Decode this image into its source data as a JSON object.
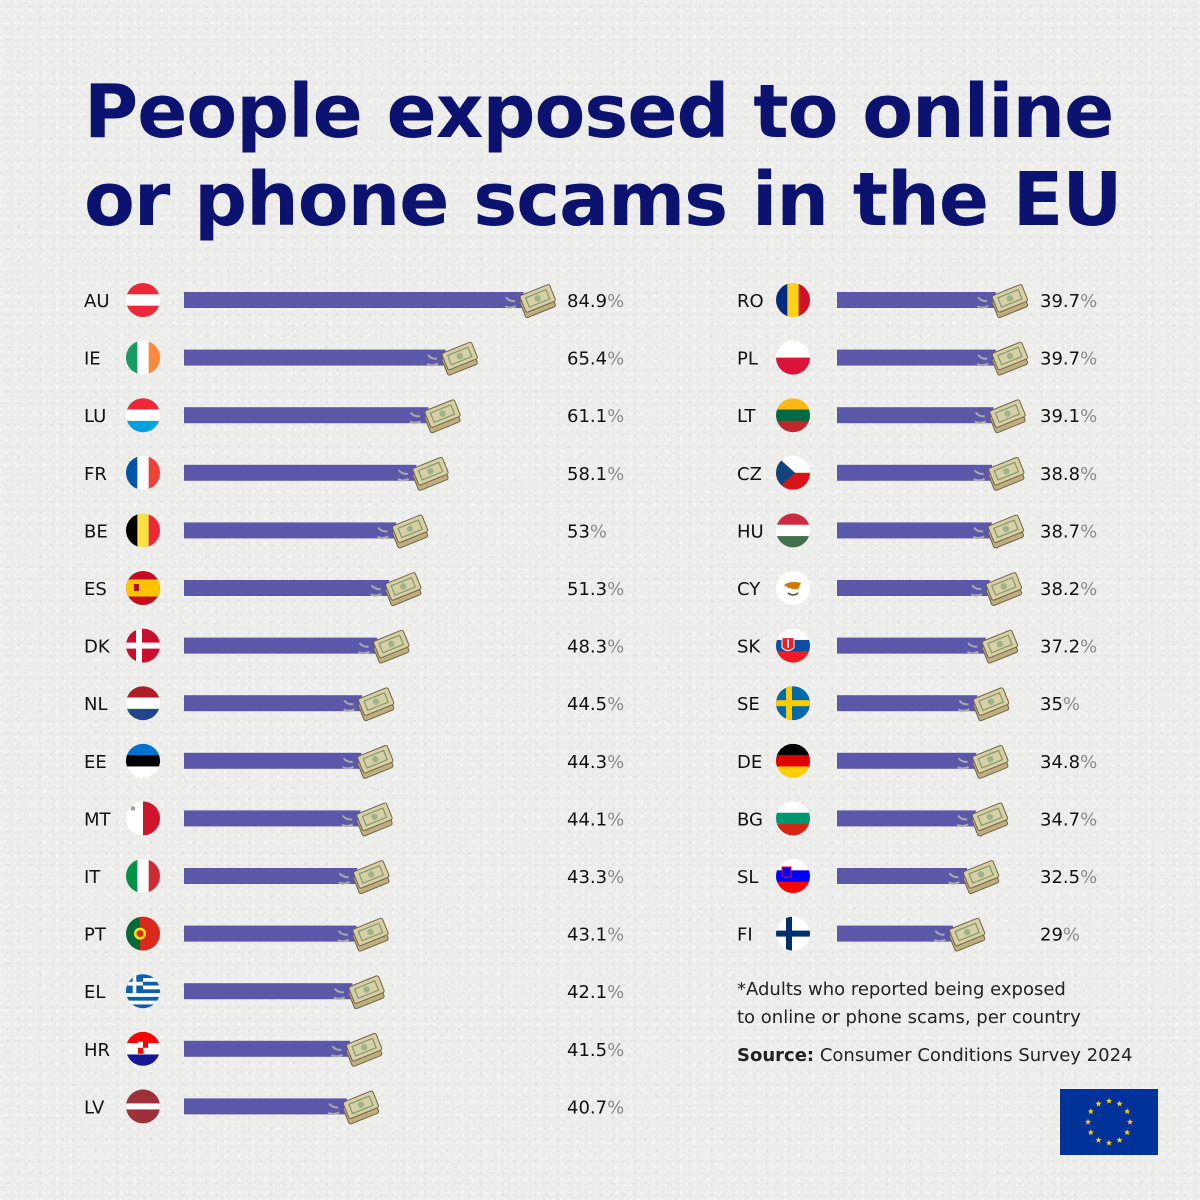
{
  "title": {
    "line1": "People exposed to online",
    "line2": "or phone scams in the EU"
  },
  "chart_data": {
    "type": "bar",
    "orientation": "horizontal",
    "title": "People exposed to online or phone scams in the EU",
    "unit": "%",
    "bar_color": "#5b58aa",
    "title_color": "#0b1270",
    "columns": [
      {
        "categories": [
          "AU",
          "IE",
          "LU",
          "FR",
          "BE",
          "ES",
          "DK",
          "NL",
          "EE",
          "MT",
          "IT",
          "PT",
          "EL",
          "HR",
          "LV"
        ],
        "values": [
          84.9,
          65.4,
          61.1,
          58.1,
          53,
          51.3,
          48.3,
          44.5,
          44.3,
          44.1,
          43.3,
          43.1,
          42.1,
          41.5,
          40.7
        ],
        "labels": [
          "84.9",
          "65.4",
          "61.1",
          "58.1",
          "53",
          "51.3",
          "48.3",
          "44.5",
          "44.3",
          "44.1",
          "43.3",
          "43.1",
          "42.1",
          "41.5",
          "40.7"
        ]
      },
      {
        "categories": [
          "RO",
          "PL",
          "LT",
          "CZ",
          "HU",
          "CY",
          "SK",
          "SE",
          "DE",
          "BG",
          "SL",
          "FI"
        ],
        "values": [
          39.7,
          39.7,
          39.1,
          38.8,
          38.7,
          38.2,
          37.2,
          35,
          34.8,
          34.7,
          32.5,
          29
        ],
        "labels": [
          "39.7",
          "39.7",
          "39.1",
          "38.8",
          "38.7",
          "38.2",
          "37.2",
          "35",
          "34.8",
          "34.7",
          "32.5",
          "29"
        ]
      }
    ],
    "xlim": [
      0,
      100
    ]
  },
  "footnote": {
    "line1": "*Adults who reported being exposed",
    "line2": "to online or phone scams, per country"
  },
  "source": {
    "label": "Source:",
    "text": "Consumer Conditions Survey 2024"
  },
  "icons": {
    "bar_end": "money-icon",
    "logo": "eu-flag-icon"
  }
}
